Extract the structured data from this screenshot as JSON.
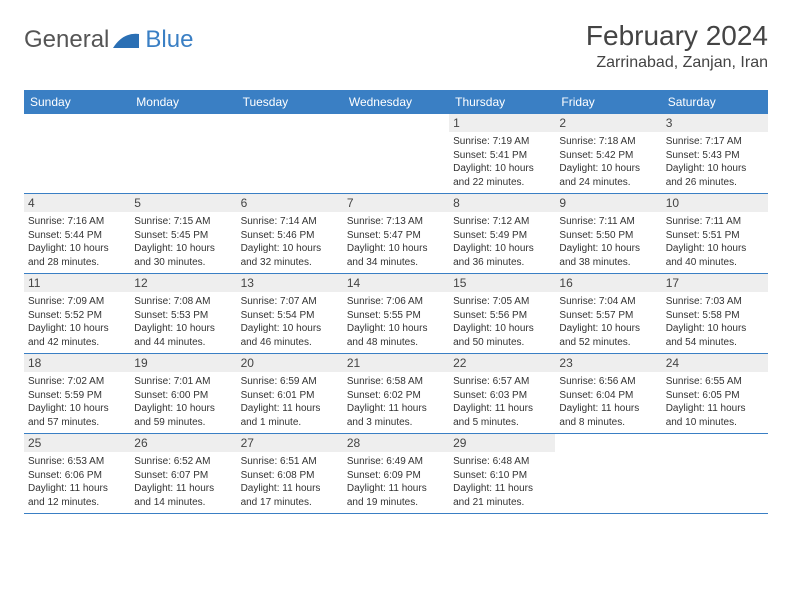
{
  "logo": {
    "text1": "General",
    "text2": "Blue",
    "swoosh_color": "#2a6fb4"
  },
  "title": {
    "month": "February 2024",
    "location": "Zarrinabad, Zanjan, Iran"
  },
  "colors": {
    "header_bg": "#3a7fc4",
    "daynum_bg": "#eeeeee",
    "rule": "#3a7fc4"
  },
  "font": {
    "title_size": 28,
    "location_size": 16,
    "dayhead_size": 12,
    "body_size": 10
  },
  "day_headers": [
    "Sunday",
    "Monday",
    "Tuesday",
    "Wednesday",
    "Thursday",
    "Friday",
    "Saturday"
  ],
  "weeks": [
    [
      null,
      null,
      null,
      null,
      {
        "num": "1",
        "sunrise": "Sunrise: 7:19 AM",
        "sunset": "Sunset: 5:41 PM",
        "daylight": "Daylight: 10 hours and 22 minutes."
      },
      {
        "num": "2",
        "sunrise": "Sunrise: 7:18 AM",
        "sunset": "Sunset: 5:42 PM",
        "daylight": "Daylight: 10 hours and 24 minutes."
      },
      {
        "num": "3",
        "sunrise": "Sunrise: 7:17 AM",
        "sunset": "Sunset: 5:43 PM",
        "daylight": "Daylight: 10 hours and 26 minutes."
      }
    ],
    [
      {
        "num": "4",
        "sunrise": "Sunrise: 7:16 AM",
        "sunset": "Sunset: 5:44 PM",
        "daylight": "Daylight: 10 hours and 28 minutes."
      },
      {
        "num": "5",
        "sunrise": "Sunrise: 7:15 AM",
        "sunset": "Sunset: 5:45 PM",
        "daylight": "Daylight: 10 hours and 30 minutes."
      },
      {
        "num": "6",
        "sunrise": "Sunrise: 7:14 AM",
        "sunset": "Sunset: 5:46 PM",
        "daylight": "Daylight: 10 hours and 32 minutes."
      },
      {
        "num": "7",
        "sunrise": "Sunrise: 7:13 AM",
        "sunset": "Sunset: 5:47 PM",
        "daylight": "Daylight: 10 hours and 34 minutes."
      },
      {
        "num": "8",
        "sunrise": "Sunrise: 7:12 AM",
        "sunset": "Sunset: 5:49 PM",
        "daylight": "Daylight: 10 hours and 36 minutes."
      },
      {
        "num": "9",
        "sunrise": "Sunrise: 7:11 AM",
        "sunset": "Sunset: 5:50 PM",
        "daylight": "Daylight: 10 hours and 38 minutes."
      },
      {
        "num": "10",
        "sunrise": "Sunrise: 7:11 AM",
        "sunset": "Sunset: 5:51 PM",
        "daylight": "Daylight: 10 hours and 40 minutes."
      }
    ],
    [
      {
        "num": "11",
        "sunrise": "Sunrise: 7:09 AM",
        "sunset": "Sunset: 5:52 PM",
        "daylight": "Daylight: 10 hours and 42 minutes."
      },
      {
        "num": "12",
        "sunrise": "Sunrise: 7:08 AM",
        "sunset": "Sunset: 5:53 PM",
        "daylight": "Daylight: 10 hours and 44 minutes."
      },
      {
        "num": "13",
        "sunrise": "Sunrise: 7:07 AM",
        "sunset": "Sunset: 5:54 PM",
        "daylight": "Daylight: 10 hours and 46 minutes."
      },
      {
        "num": "14",
        "sunrise": "Sunrise: 7:06 AM",
        "sunset": "Sunset: 5:55 PM",
        "daylight": "Daylight: 10 hours and 48 minutes."
      },
      {
        "num": "15",
        "sunrise": "Sunrise: 7:05 AM",
        "sunset": "Sunset: 5:56 PM",
        "daylight": "Daylight: 10 hours and 50 minutes."
      },
      {
        "num": "16",
        "sunrise": "Sunrise: 7:04 AM",
        "sunset": "Sunset: 5:57 PM",
        "daylight": "Daylight: 10 hours and 52 minutes."
      },
      {
        "num": "17",
        "sunrise": "Sunrise: 7:03 AM",
        "sunset": "Sunset: 5:58 PM",
        "daylight": "Daylight: 10 hours and 54 minutes."
      }
    ],
    [
      {
        "num": "18",
        "sunrise": "Sunrise: 7:02 AM",
        "sunset": "Sunset: 5:59 PM",
        "daylight": "Daylight: 10 hours and 57 minutes."
      },
      {
        "num": "19",
        "sunrise": "Sunrise: 7:01 AM",
        "sunset": "Sunset: 6:00 PM",
        "daylight": "Daylight: 10 hours and 59 minutes."
      },
      {
        "num": "20",
        "sunrise": "Sunrise: 6:59 AM",
        "sunset": "Sunset: 6:01 PM",
        "daylight": "Daylight: 11 hours and 1 minute."
      },
      {
        "num": "21",
        "sunrise": "Sunrise: 6:58 AM",
        "sunset": "Sunset: 6:02 PM",
        "daylight": "Daylight: 11 hours and 3 minutes."
      },
      {
        "num": "22",
        "sunrise": "Sunrise: 6:57 AM",
        "sunset": "Sunset: 6:03 PM",
        "daylight": "Daylight: 11 hours and 5 minutes."
      },
      {
        "num": "23",
        "sunrise": "Sunrise: 6:56 AM",
        "sunset": "Sunset: 6:04 PM",
        "daylight": "Daylight: 11 hours and 8 minutes."
      },
      {
        "num": "24",
        "sunrise": "Sunrise: 6:55 AM",
        "sunset": "Sunset: 6:05 PM",
        "daylight": "Daylight: 11 hours and 10 minutes."
      }
    ],
    [
      {
        "num": "25",
        "sunrise": "Sunrise: 6:53 AM",
        "sunset": "Sunset: 6:06 PM",
        "daylight": "Daylight: 11 hours and 12 minutes."
      },
      {
        "num": "26",
        "sunrise": "Sunrise: 6:52 AM",
        "sunset": "Sunset: 6:07 PM",
        "daylight": "Daylight: 11 hours and 14 minutes."
      },
      {
        "num": "27",
        "sunrise": "Sunrise: 6:51 AM",
        "sunset": "Sunset: 6:08 PM",
        "daylight": "Daylight: 11 hours and 17 minutes."
      },
      {
        "num": "28",
        "sunrise": "Sunrise: 6:49 AM",
        "sunset": "Sunset: 6:09 PM",
        "daylight": "Daylight: 11 hours and 19 minutes."
      },
      {
        "num": "29",
        "sunrise": "Sunrise: 6:48 AM",
        "sunset": "Sunset: 6:10 PM",
        "daylight": "Daylight: 11 hours and 21 minutes."
      },
      null,
      null
    ]
  ]
}
